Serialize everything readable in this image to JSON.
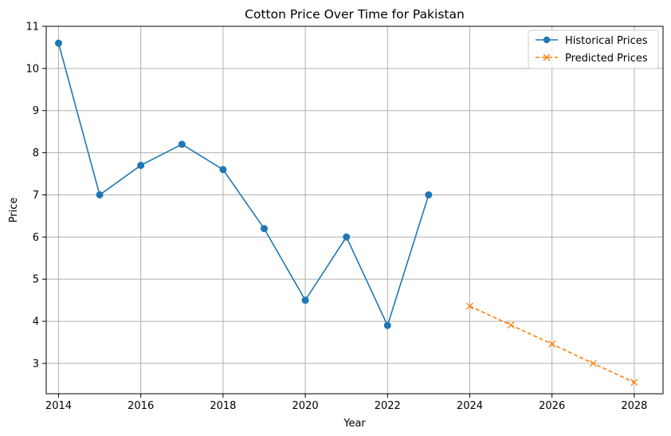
{
  "chart_data": {
    "type": "line",
    "title": "Cotton Price Over Time for Pakistan",
    "xlabel": "Year",
    "ylabel": "Price",
    "xlim": [
      2013.7,
      2028.7
    ],
    "ylim": [
      2.28,
      11
    ],
    "xticks": [
      2014,
      2016,
      2018,
      2020,
      2022,
      2024,
      2026,
      2028
    ],
    "yticks": [
      3,
      4,
      5,
      6,
      7,
      8,
      9,
      10,
      11
    ],
    "grid": true,
    "legend_position": "top-right",
    "series": [
      {
        "name": "Historical Prices",
        "color": "#1f77b4",
        "marker": "circle",
        "linestyle": "solid",
        "x": [
          2014,
          2015,
          2016,
          2017,
          2018,
          2019,
          2020,
          2021,
          2022,
          2023
        ],
        "y": [
          10.6,
          7.0,
          7.7,
          8.2,
          7.6,
          6.2,
          4.5,
          6.0,
          3.9,
          7.0
        ]
      },
      {
        "name": "Predicted Prices",
        "color": "#ff7f0e",
        "marker": "x",
        "linestyle": "dashed",
        "x": [
          2024,
          2025,
          2026,
          2027,
          2028
        ],
        "y": [
          4.36,
          3.91,
          3.46,
          3.0,
          2.55
        ]
      }
    ]
  }
}
